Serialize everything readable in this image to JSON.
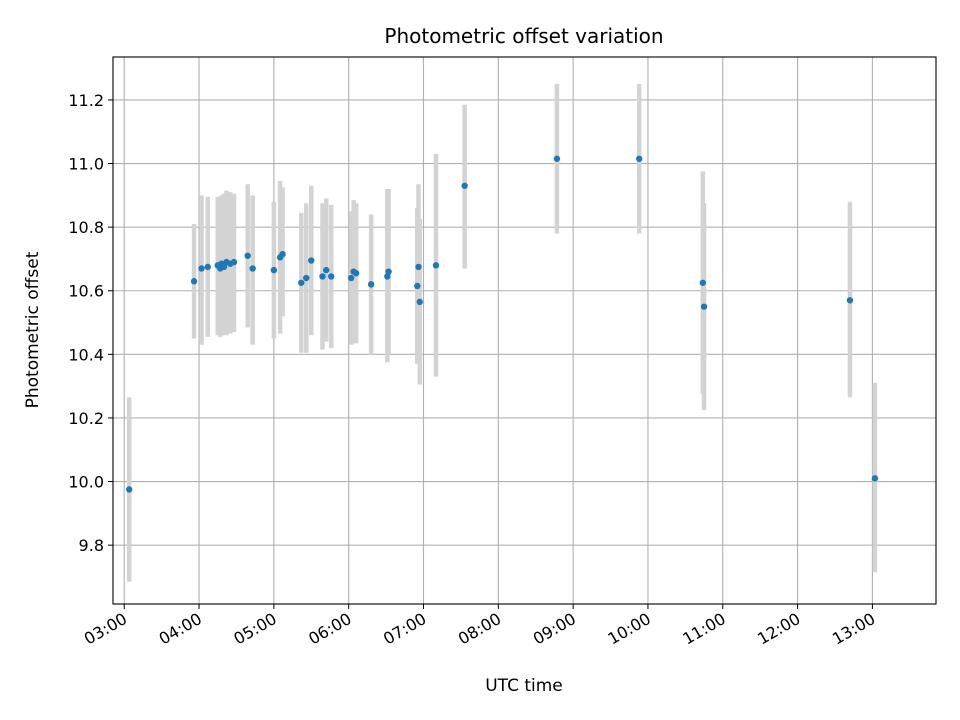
{
  "chart_data": {
    "type": "scatter",
    "title": "Photometric offset variation",
    "xlabel": "UTC time",
    "ylabel": "Photometric offset",
    "x_unit": "UTC time (HH:MM)",
    "xlim": [
      "02:51",
      "13:51"
    ],
    "ylim": [
      9.615,
      11.335
    ],
    "grid": true,
    "colors": {
      "points": "#1f77b4",
      "error_bars": "#d3d3d3",
      "grid": "#b0b0b0"
    },
    "x_ticks": [
      "03:00",
      "04:00",
      "05:00",
      "06:00",
      "07:00",
      "08:00",
      "09:00",
      "10:00",
      "11:00",
      "12:00",
      "13:00"
    ],
    "y_ticks": [
      "9.8",
      "10.0",
      "10.2",
      "10.4",
      "10.6",
      "10.8",
      "11.0",
      "11.2"
    ],
    "points": [
      {
        "t": "03:04",
        "y": 9.975,
        "lo": 9.685,
        "hi": 10.265
      },
      {
        "t": "03:56",
        "y": 10.63,
        "lo": 10.45,
        "hi": 10.81
      },
      {
        "t": "04:02",
        "y": 10.67,
        "lo": 10.43,
        "hi": 10.9
      },
      {
        "t": "04:07",
        "y": 10.675,
        "lo": 10.455,
        "hi": 10.895
      },
      {
        "t": "04:15",
        "y": 10.68,
        "lo": 10.46,
        "hi": 10.895
      },
      {
        "t": "04:17",
        "y": 10.67,
        "lo": 10.455,
        "hi": 10.89
      },
      {
        "t": "04:18",
        "y": 10.685,
        "lo": 10.46,
        "hi": 10.9
      },
      {
        "t": "04:20",
        "y": 10.675,
        "lo": 10.46,
        "hi": 10.905
      },
      {
        "t": "04:22",
        "y": 10.69,
        "lo": 10.46,
        "hi": 10.915
      },
      {
        "t": "04:25",
        "y": 10.685,
        "lo": 10.465,
        "hi": 10.91
      },
      {
        "t": "04:28",
        "y": 10.69,
        "lo": 10.47,
        "hi": 10.905
      },
      {
        "t": "04:39",
        "y": 10.71,
        "lo": 10.485,
        "hi": 10.935
      },
      {
        "t": "04:43",
        "y": 10.67,
        "lo": 10.43,
        "hi": 10.9
      },
      {
        "t": "05:00",
        "y": 10.665,
        "lo": 10.45,
        "hi": 10.88
      },
      {
        "t": "05:05",
        "y": 10.705,
        "lo": 10.465,
        "hi": 10.945
      },
      {
        "t": "05:07",
        "y": 10.715,
        "lo": 10.52,
        "hi": 10.925
      },
      {
        "t": "05:22",
        "y": 10.625,
        "lo": 10.405,
        "hi": 10.845
      },
      {
        "t": "05:26",
        "y": 10.64,
        "lo": 10.405,
        "hi": 10.875
      },
      {
        "t": "05:30",
        "y": 10.695,
        "lo": 10.46,
        "hi": 10.93
      },
      {
        "t": "05:39",
        "y": 10.645,
        "lo": 10.415,
        "hi": 10.875
      },
      {
        "t": "05:42",
        "y": 10.665,
        "lo": 10.44,
        "hi": 10.89
      },
      {
        "t": "05:46",
        "y": 10.645,
        "lo": 10.42,
        "hi": 10.87
      },
      {
        "t": "06:02",
        "y": 10.64,
        "lo": 10.43,
        "hi": 10.85
      },
      {
        "t": "06:04",
        "y": 10.66,
        "lo": 10.435,
        "hi": 10.885
      },
      {
        "t": "06:06",
        "y": 10.655,
        "lo": 10.435,
        "hi": 10.875
      },
      {
        "t": "06:18",
        "y": 10.62,
        "lo": 10.4,
        "hi": 10.84
      },
      {
        "t": "06:31",
        "y": 10.645,
        "lo": 10.375,
        "hi": 10.92
      },
      {
        "t": "06:32",
        "y": 10.66,
        "lo": 10.4,
        "hi": 10.92
      },
      {
        "t": "06:55",
        "y": 10.615,
        "lo": 10.37,
        "hi": 10.86
      },
      {
        "t": "06:56",
        "y": 10.675,
        "lo": 10.41,
        "hi": 10.935
      },
      {
        "t": "06:57",
        "y": 10.565,
        "lo": 10.305,
        "hi": 10.825
      },
      {
        "t": "07:10",
        "y": 10.68,
        "lo": 10.33,
        "hi": 11.03
      },
      {
        "t": "07:33",
        "y": 10.93,
        "lo": 10.67,
        "hi": 11.185
      },
      {
        "t": "08:47",
        "y": 11.015,
        "lo": 10.78,
        "hi": 11.25
      },
      {
        "t": "09:53",
        "y": 11.015,
        "lo": 10.78,
        "hi": 11.25
      },
      {
        "t": "10:44",
        "y": 10.625,
        "lo": 10.275,
        "hi": 10.975
      },
      {
        "t": "10:45",
        "y": 10.55,
        "lo": 10.225,
        "hi": 10.875
      },
      {
        "t": "12:42",
        "y": 10.57,
        "lo": 10.265,
        "hi": 10.88
      },
      {
        "t": "13:02",
        "y": 10.01,
        "lo": 9.715,
        "hi": 10.31
      }
    ]
  }
}
